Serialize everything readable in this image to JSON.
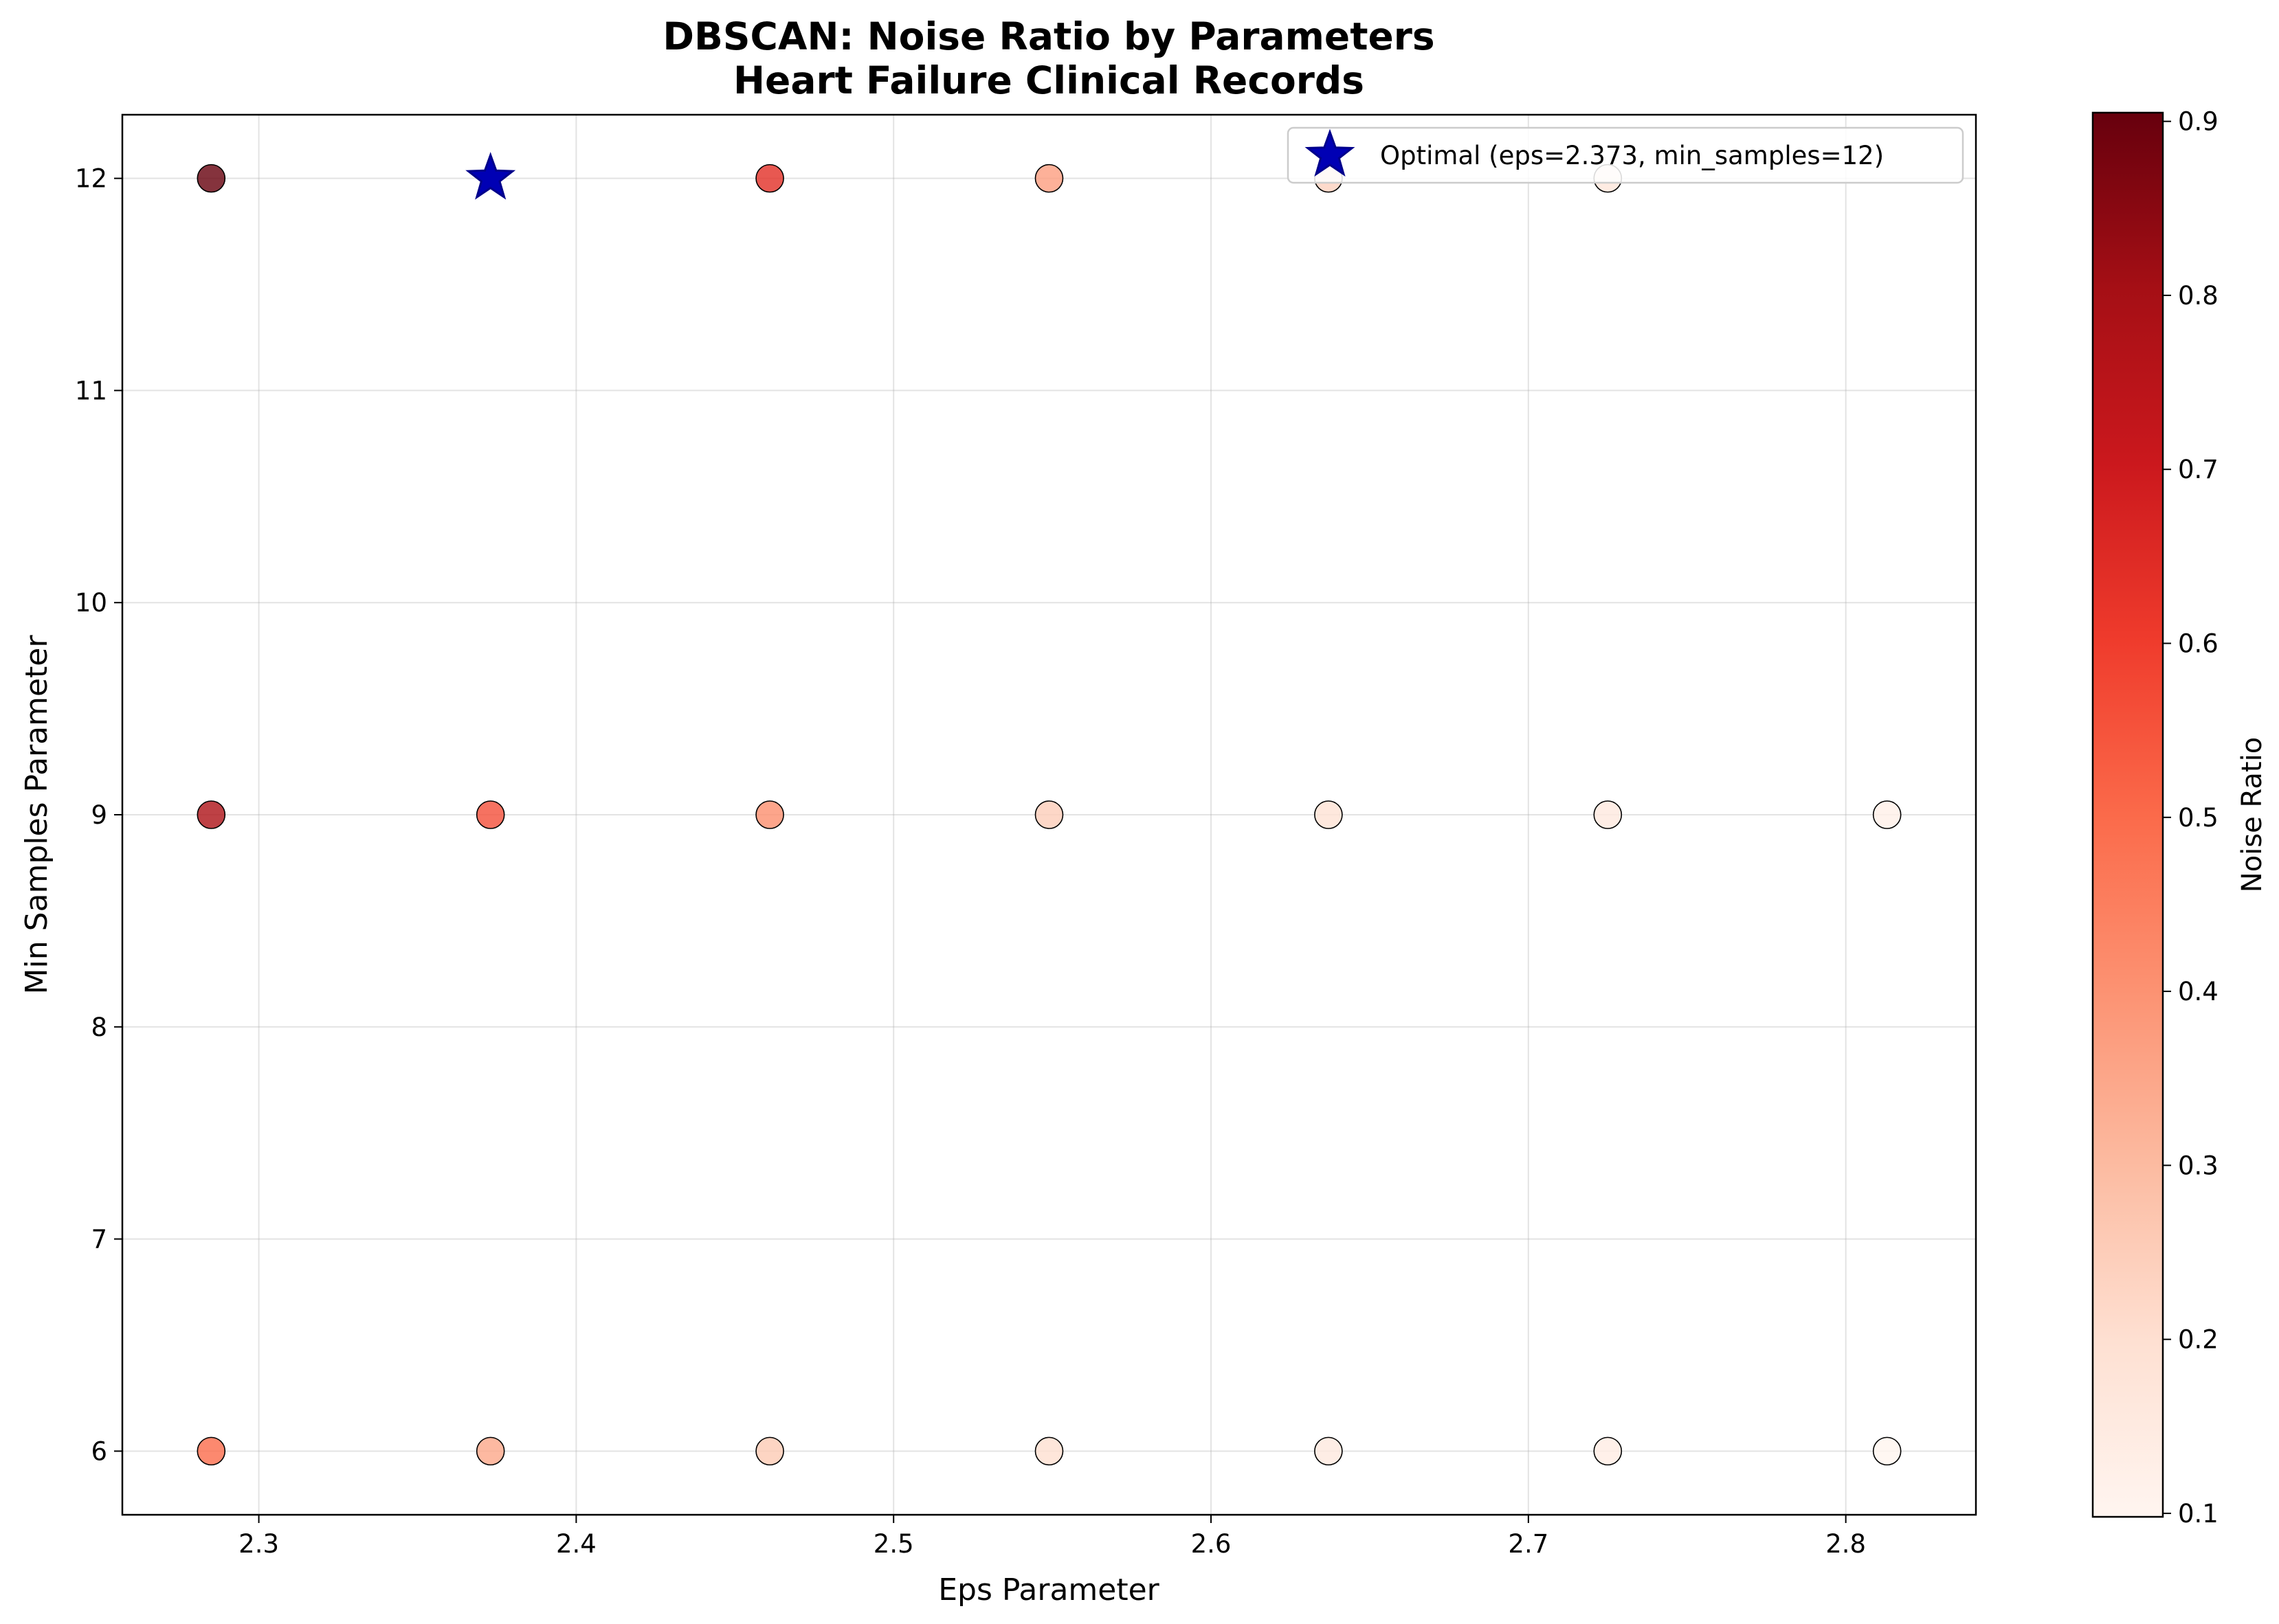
{
  "chart_data": {
    "type": "scatter",
    "title_line1": "DBSCAN: Noise Ratio by Parameters",
    "title_line2": "Heart Failure Clinical Records",
    "xlabel": "Eps Parameter",
    "ylabel": "Min Samples Parameter",
    "colorbar_label": "Noise Ratio",
    "xlim": [
      2.257,
      2.841
    ],
    "ylim": [
      5.7,
      12.3
    ],
    "x_ticks": [
      "2.3",
      "2.4",
      "2.5",
      "2.6",
      "2.7",
      "2.8"
    ],
    "y_ticks": [
      "6",
      "7",
      "8",
      "9",
      "10",
      "11",
      "12"
    ],
    "colorbar_ticks": [
      "0.1",
      "0.2",
      "0.3",
      "0.4",
      "0.5",
      "0.6",
      "0.7",
      "0.8",
      "0.9"
    ],
    "colorbar_range": [
      0.098,
      0.905
    ],
    "grid": true,
    "legend_position": "top-right",
    "colormap": "Reds",
    "points": [
      {
        "x": 2.285,
        "y": 12,
        "noise": 0.905
      },
      {
        "x": 2.461,
        "y": 12,
        "noise": 0.64
      },
      {
        "x": 2.549,
        "y": 12,
        "noise": 0.37
      },
      {
        "x": 2.637,
        "y": 12,
        "noise": 0.24
      },
      {
        "x": 2.725,
        "y": 12,
        "noise": 0.17
      },
      {
        "x": 2.285,
        "y": 9,
        "noise": 0.78
      },
      {
        "x": 2.373,
        "y": 9,
        "noise": 0.56
      },
      {
        "x": 2.461,
        "y": 9,
        "noise": 0.41
      },
      {
        "x": 2.549,
        "y": 9,
        "noise": 0.25
      },
      {
        "x": 2.637,
        "y": 9,
        "noise": 0.19
      },
      {
        "x": 2.725,
        "y": 9,
        "noise": 0.16
      },
      {
        "x": 2.813,
        "y": 9,
        "noise": 0.12
      },
      {
        "x": 2.285,
        "y": 6,
        "noise": 0.5
      },
      {
        "x": 2.373,
        "y": 6,
        "noise": 0.35
      },
      {
        "x": 2.461,
        "y": 6,
        "noise": 0.26
      },
      {
        "x": 2.549,
        "y": 6,
        "noise": 0.2
      },
      {
        "x": 2.637,
        "y": 6,
        "noise": 0.16
      },
      {
        "x": 2.725,
        "y": 6,
        "noise": 0.14
      },
      {
        "x": 2.813,
        "y": 6,
        "noise": 0.1
      }
    ],
    "optimal": {
      "x": 2.373,
      "y": 12,
      "label": "Optimal (eps=2.373, min_samples=12)",
      "color": "#0000b4"
    }
  }
}
